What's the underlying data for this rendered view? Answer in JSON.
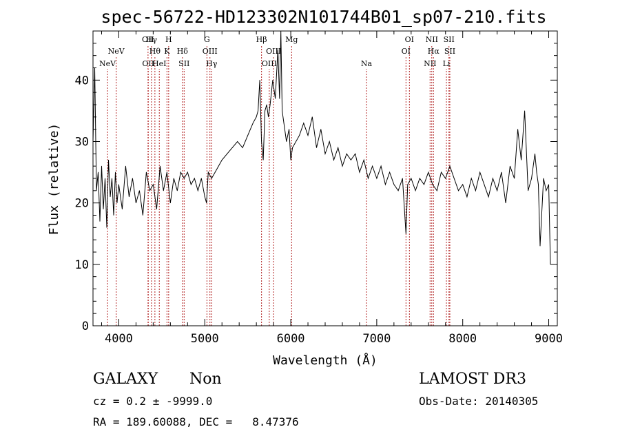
{
  "chart_data": {
    "type": "line",
    "title": "spec-56722-HD123302N101744B01_sp07-210.fits",
    "xlabel": "Wavelength (Å)",
    "ylabel": "Flux (relative)",
    "xlim": [
      3700,
      9100
    ],
    "ylim": [
      0,
      48
    ],
    "xticks": [
      "4000",
      "5000",
      "6000",
      "7000",
      "8000",
      "9000"
    ],
    "yticks": [
      "0",
      "10",
      "20",
      "30",
      "40"
    ],
    "grid": false,
    "series": [
      {
        "color": "#000000",
        "x": [
          3700,
          3720,
          3740,
          3760,
          3780,
          3800,
          3820,
          3840,
          3860,
          3880,
          3900,
          3920,
          3940,
          3960,
          3980,
          4000,
          4040,
          4080,
          4120,
          4160,
          4200,
          4240,
          4280,
          4320,
          4360,
          4400,
          4440,
          4480,
          4520,
          4560,
          4600,
          4640,
          4680,
          4720,
          4760,
          4800,
          4840,
          4880,
          4920,
          4960,
          5000,
          5020,
          5040,
          5080,
          5120,
          5160,
          5200,
          5260,
          5320,
          5380,
          5440,
          5500,
          5560,
          5600,
          5620,
          5640,
          5660,
          5680,
          5700,
          5720,
          5740,
          5760,
          5790,
          5820,
          5850,
          5870,
          5885,
          5900,
          5920,
          5950,
          5980,
          6000,
          6020,
          6060,
          6100,
          6150,
          6200,
          6250,
          6300,
          6350,
          6400,
          6450,
          6500,
          6550,
          6600,
          6650,
          6700,
          6750,
          6800,
          6850,
          6900,
          6950,
          7000,
          7050,
          7100,
          7150,
          7200,
          7250,
          7300,
          7340,
          7360,
          7400,
          7450,
          7500,
          7550,
          7600,
          7650,
          7700,
          7750,
          7800,
          7850,
          7900,
          7950,
          8000,
          8050,
          8100,
          8150,
          8200,
          8250,
          8300,
          8350,
          8400,
          8450,
          8500,
          8550,
          8600,
          8640,
          8680,
          8720,
          8760,
          8800,
          8840,
          8860,
          8880,
          8900,
          8940,
          8970,
          9000,
          9020
        ],
        "y": [
          30,
          42,
          22,
          25,
          17,
          26,
          19,
          24,
          16,
          27,
          21,
          24,
          18,
          25,
          20,
          23,
          19,
          26,
          21,
          24,
          20,
          22,
          18,
          25,
          22,
          23,
          19,
          26,
          22,
          25,
          20,
          24,
          22,
          25,
          24,
          25,
          23,
          24,
          22,
          24,
          21,
          20,
          25,
          24,
          25,
          26,
          27,
          28,
          29,
          30,
          29,
          31,
          33,
          34,
          35,
          40,
          30,
          27,
          35,
          36,
          34,
          36,
          40,
          37,
          45,
          37,
          48,
          35,
          33,
          30,
          32,
          27,
          29,
          30,
          31,
          33,
          31,
          34,
          29,
          32,
          28,
          30,
          27,
          29,
          26,
          28,
          27,
          28,
          25,
          27,
          24,
          26,
          24,
          26,
          23,
          25,
          23,
          22,
          24,
          15,
          23,
          24,
          22,
          24,
          23,
          25,
          23,
          22,
          25,
          24,
          26,
          24,
          22,
          23,
          21,
          24,
          22,
          25,
          23,
          21,
          24,
          22,
          25,
          20,
          26,
          24,
          32,
          27,
          35,
          22,
          24,
          28,
          25,
          23,
          13,
          24,
          22,
          23,
          10
        ]
      }
    ],
    "lines": [
      {
        "label": "NeV",
        "x": 3869,
        "row": 2
      },
      {
        "label": "NeV",
        "x": 3970,
        "row": 1
      },
      {
        "label": "OII",
        "x": 4340,
        "row": 0
      },
      {
        "label": "OII",
        "x": 4343,
        "row": 2
      },
      {
        "label": "Hγ",
        "x": 4380,
        "row": 0
      },
      {
        "label": "Hθ",
        "x": 4420,
        "row": 1
      },
      {
        "label": "HeI",
        "x": 4471,
        "row": 2
      },
      {
        "label": "H",
        "x": 4580,
        "row": 0
      },
      {
        "label": "K",
        "x": 4560,
        "row": 1
      },
      {
        "label": "Hδ",
        "x": 4740,
        "row": 1
      },
      {
        "label": "SII",
        "x": 4760,
        "row": 2
      },
      {
        "label": "G",
        "x": 5025,
        "row": 0
      },
      {
        "label": "OIII",
        "x": 5060,
        "row": 1
      },
      {
        "label": "Hγ",
        "x": 5080,
        "row": 2
      },
      {
        "label": "Hβ",
        "x": 5660,
        "row": 0
      },
      {
        "label": "OIII",
        "x": 5800,
        "row": 1
      },
      {
        "label": "OIII",
        "x": 5750,
        "row": 2
      },
      {
        "label": "Mg",
        "x": 6010,
        "row": 0
      },
      {
        "label": "Na",
        "x": 6880,
        "row": 2
      },
      {
        "label": "OI",
        "x": 7380,
        "row": 0
      },
      {
        "label": "OI",
        "x": 7340,
        "row": 1
      },
      {
        "label": "NII",
        "x": 7640,
        "row": 0
      },
      {
        "label": "Hα",
        "x": 7660,
        "row": 1
      },
      {
        "label": "NII",
        "x": 7620,
        "row": 2
      },
      {
        "label": "SII",
        "x": 7840,
        "row": 0
      },
      {
        "label": "SII",
        "x": 7850,
        "row": 1
      },
      {
        "label": "Li",
        "x": 7810,
        "row": 2
      }
    ]
  },
  "info": {
    "object_type": "GALAXY",
    "subclass": "Non",
    "survey": "LAMOST DR3",
    "cz": "cz = 0.2 ± -9999.0",
    "obs_date": "Obs-Date: 20140305",
    "coords": "RA = 189.60088, DEC =   8.47376"
  }
}
